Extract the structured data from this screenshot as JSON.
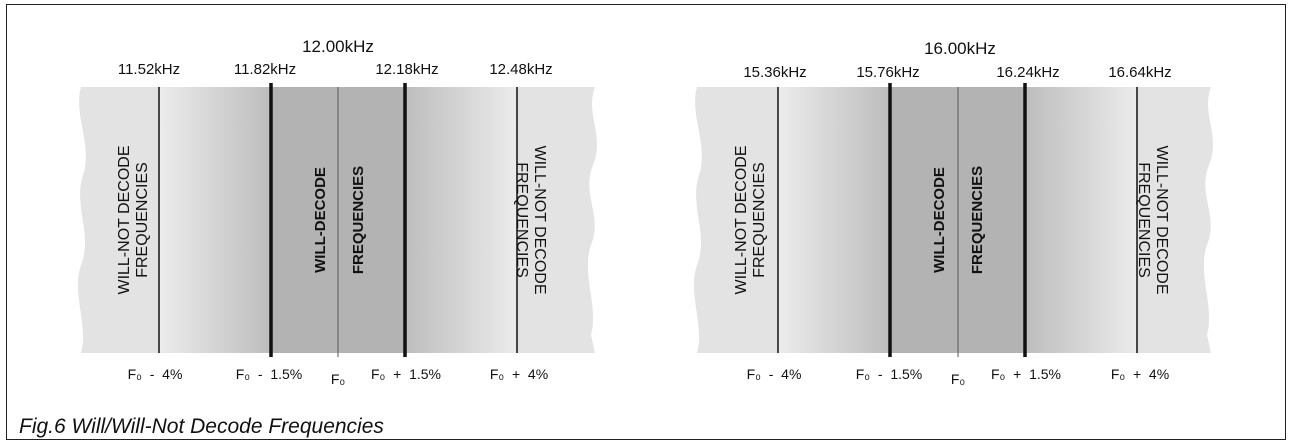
{
  "caption": "Fig.6 Will/Will-Not Decode Frequencies",
  "diagrams": [
    {
      "center_freq": "12.00kHz",
      "freqs": [
        "11.52kHz",
        "11.82kHz",
        "12.18kHz",
        "12.48kHz"
      ],
      "left_label": [
        "WILL-NOT DECODE",
        "FREQUENCIES"
      ],
      "right_label": [
        "WILL-NOT DECODE",
        "FREQUENCIES"
      ],
      "center_label_1": "WILL-DECODE",
      "center_label_2": "FREQUENCIES",
      "bottom": {
        "minus4": "F₀  -  4%",
        "minus15": "F₀  -  1.5%",
        "f0": "F₀",
        "plus15": "F₀  +  1.5%",
        "plus4": "F₀  +  4%"
      }
    },
    {
      "center_freq": "16.00kHz",
      "freqs": [
        "15.36kHz",
        "15.76kHz",
        "16.24kHz",
        "16.64kHz"
      ],
      "left_label": [
        "WILL-NOT DECODE",
        "FREQUENCIES"
      ],
      "right_label": [
        "WILL-NOT DECODE",
        "FREQUENCIES"
      ],
      "center_label_1": "WILL-DECODE",
      "center_label_2": "FREQUENCIES",
      "bottom": {
        "minus4": "F₀  -  4%",
        "minus15": "F₀  -  1.5%",
        "f0": "F₀",
        "plus15": "F₀  +  1.5%",
        "plus4": "F₀  +  4%"
      }
    }
  ],
  "colors": {
    "band_light": "#e3e3e3",
    "band_mid": "#cfcfcf",
    "band_dark": "#b3b3b3",
    "line": "#111111"
  }
}
